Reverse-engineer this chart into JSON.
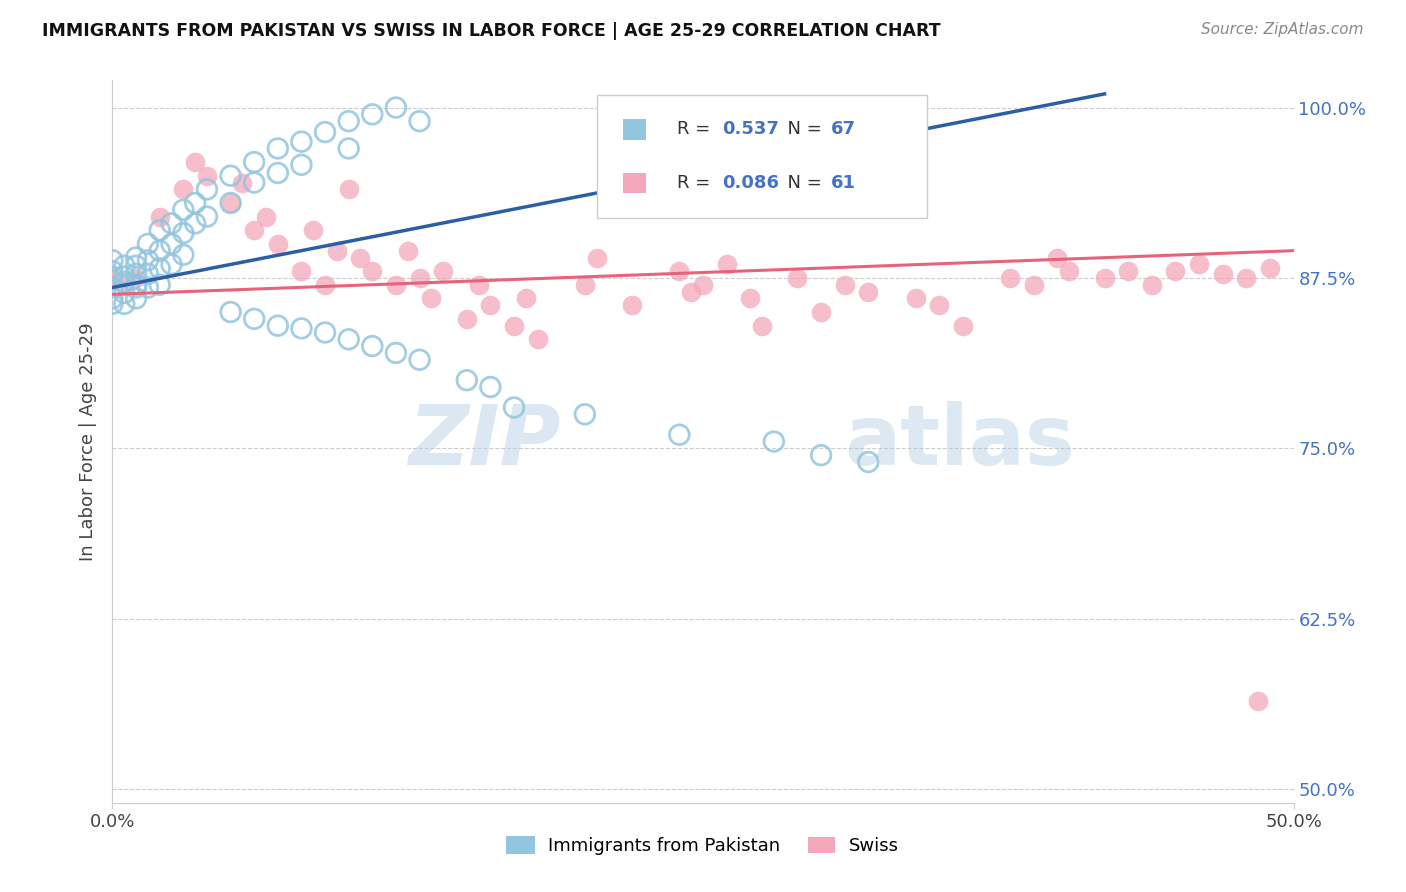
{
  "title": "IMMIGRANTS FROM PAKISTAN VS SWISS IN LABOR FORCE | AGE 25-29 CORRELATION CHART",
  "source": "Source: ZipAtlas.com",
  "ylabel": "In Labor Force | Age 25-29",
  "xlim": [
    0.0,
    0.5
  ],
  "ylim": [
    0.49,
    1.02
  ],
  "yticks": [
    0.5,
    0.625,
    0.75,
    0.875,
    1.0
  ],
  "ytick_labels": [
    "50.0%",
    "62.5%",
    "75.0%",
    "87.5%",
    "100.0%"
  ],
  "xticks": [
    0.0,
    0.5
  ],
  "xtick_labels": [
    "0.0%",
    "50.0%"
  ],
  "legend_labels": [
    "Immigrants from Pakistan",
    "Swiss"
  ],
  "blue_R": "0.537",
  "blue_N": "67",
  "pink_R": "0.086",
  "pink_N": "61",
  "blue_color": "#92c5de",
  "pink_color": "#f4a7b9",
  "blue_line_color": "#2b5fa5",
  "pink_line_color": "#e8637a",
  "watermark_color": "#d0e4f0",
  "background_color": "#ffffff",
  "grid_color": "#cccccc",
  "blue_line_x0": 0.0,
  "blue_line_y0": 0.868,
  "blue_line_x1": 0.42,
  "blue_line_y1": 1.01,
  "pink_line_x0": 0.0,
  "pink_line_y0": 0.863,
  "pink_line_x1": 0.5,
  "pink_line_y1": 0.895
}
